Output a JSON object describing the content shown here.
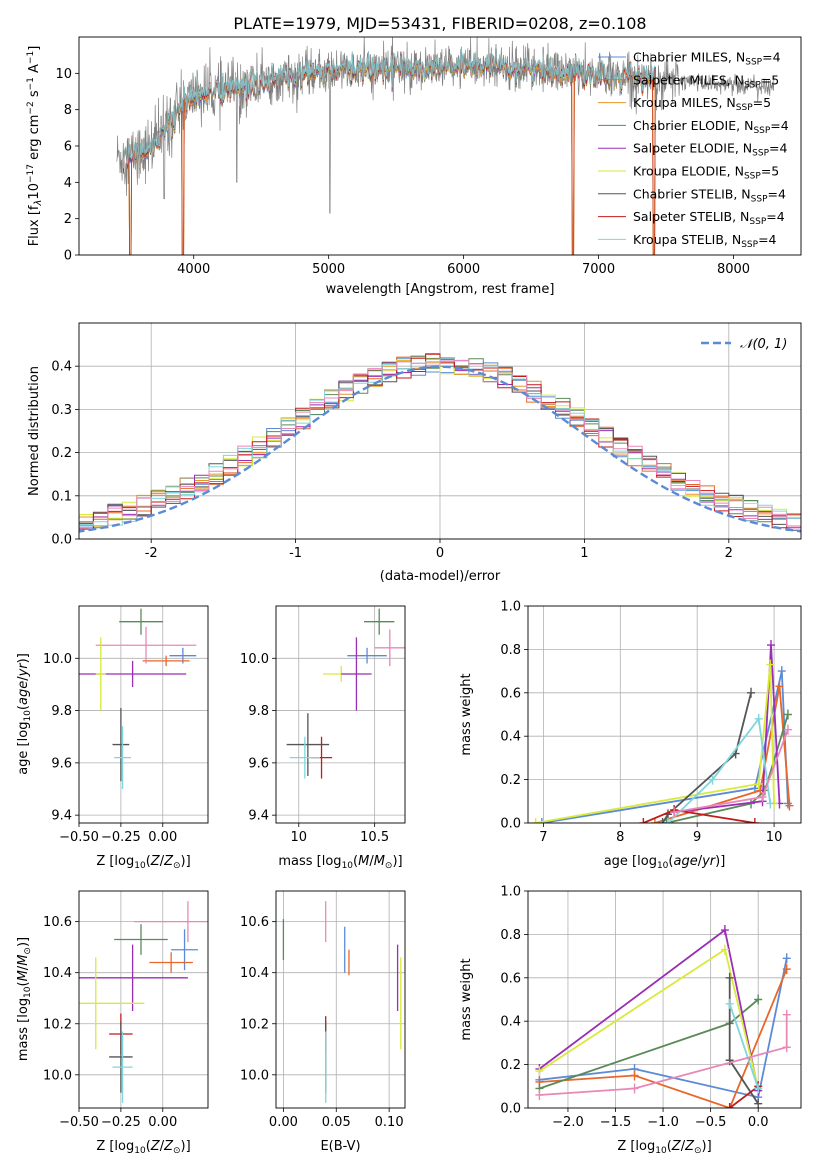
{
  "figure": {
    "title": "PLATE=1979, MJD=53431, FIBERID=0208, z=0.108",
    "colors": {
      "chabrier_miles": "#5b8bd6",
      "salpeter_miles": "#e8672a",
      "kroupa_miles": "#e8952a",
      "chabrier_elodie": "#5a8a5a",
      "salpeter_elodie": "#9a2fb5",
      "kroupa_elodie": "#d9ea3a",
      "chabrier_stelib": "#555555",
      "salpeter_stelib": "#c21b1b",
      "kroupa_stelib": "#7fd6dc",
      "pink": "#e888b8"
    }
  },
  "chart_data": [
    {
      "id": "spectrum",
      "type": "line",
      "title": "PLATE=1979, MJD=53431, FIBERID=0208, z=0.108",
      "xlabel": "wavelength [Angstrom, rest frame]",
      "ylabel": "Flux [f_λ 10^-17 erg cm^-2 s^-1 A^-1]",
      "xlim": [
        3150,
        8500
      ],
      "ylim": [
        0,
        12
      ],
      "xticks": [
        4000,
        5000,
        6000,
        7000,
        8000
      ],
      "yticks": [
        0,
        2,
        4,
        6,
        8,
        10
      ],
      "legend_position": "right",
      "legend": [
        {
          "label": "Chabrier MILES, N",
          "sub": "SSP",
          "suffix": "=4",
          "color": "#5b8bd6"
        },
        {
          "label": "Salpeter MILES, N",
          "sub": "SSP",
          "suffix": "=5",
          "color": "#e8672a"
        },
        {
          "label": "Kroupa MILES, N",
          "sub": "SSP",
          "suffix": "=5",
          "color": "#e8952a"
        },
        {
          "label": "Chabrier ELODIE, N",
          "sub": "SSP",
          "suffix": "=4",
          "color": "#5a8a5a"
        },
        {
          "label": "Salpeter ELODIE, N",
          "sub": "SSP",
          "suffix": "=4",
          "color": "#9a2fb5"
        },
        {
          "label": "Kroupa ELODIE, N",
          "sub": "SSP",
          "suffix": "=5",
          "color": "#d9ea3a"
        },
        {
          "label": "Chabrier STELIB, N",
          "sub": "SSP",
          "suffix": "=4",
          "color": "#555555"
        },
        {
          "label": "Salpeter STELIB, N",
          "sub": "SSP",
          "suffix": "=4",
          "color": "#c21b1b"
        },
        {
          "label": "Kroupa STELIB, N",
          "sub": "SSP",
          "suffix": "=4",
          "color": "#7fd6dc"
        }
      ],
      "continuum_knots": [
        [
          3430,
          5.4
        ],
        [
          3550,
          5.5
        ],
        [
          3700,
          6.0
        ],
        [
          3900,
          8.2
        ],
        [
          4000,
          8.8
        ],
        [
          4200,
          9.0
        ],
        [
          4500,
          9.5
        ],
        [
          5000,
          10.1
        ],
        [
          5500,
          10.3
        ],
        [
          6000,
          10.4
        ],
        [
          6500,
          10.2
        ],
        [
          7000,
          10.0
        ],
        [
          7500,
          9.6
        ],
        [
          8000,
          9.4
        ],
        [
          8300,
          9.2
        ]
      ],
      "observed_range": [
        3430,
        8300
      ],
      "model_range": [
        3480,
        7420
      ],
      "dips": [
        [
          3530,
          0.0
        ],
        [
          3920,
          0.0
        ],
        [
          6810,
          0.0
        ],
        [
          7410,
          0.0
        ]
      ]
    },
    {
      "id": "residuals",
      "type": "line",
      "xlabel": "(data-model)/error",
      "ylabel": "Normed distribution",
      "xlim": [
        -2.5,
        2.5
      ],
      "ylim": [
        0,
        0.5
      ],
      "xticks": [
        -2,
        -1,
        0,
        1,
        2
      ],
      "yticks": [
        0.0,
        0.1,
        0.2,
        0.3,
        0.4
      ],
      "legend_label": "𝒩(0, 1)",
      "legend_position": "top-right",
      "bin_width": 0.1
    },
    {
      "id": "age_vs_z",
      "type": "scatter",
      "xlabel": "Z [log10(Z/Z⊙)]",
      "ylabel": "age  [log10(age/yr)]",
      "xlim": [
        -0.5,
        0.27
      ],
      "ylim": [
        9.37,
        10.2
      ],
      "xticks": [
        -0.5,
        -0.25,
        0.0
      ],
      "xtick_labels": [
        "−0.50",
        "−0.25",
        "0.00"
      ],
      "yticks": [
        9.4,
        9.6,
        9.8,
        10.0
      ],
      "yticklabels": [
        "9.4",
        "9.6",
        "9.8",
        "10.0"
      ],
      "points": [
        {
          "x": -0.13,
          "y": 10.14,
          "xerr": 0.13,
          "yerr": 0.05,
          "color": "#5a8a5a"
        },
        {
          "x": 0.12,
          "y": 10.01,
          "xerr": 0.08,
          "yerr": 0.03,
          "color": "#5b8bd6"
        },
        {
          "x": 0.02,
          "y": 9.99,
          "xerr": 0.14,
          "yerr": 0.02,
          "color": "#e8672a"
        },
        {
          "x": -0.1,
          "y": 10.05,
          "xerr": 0.3,
          "yerr": 0.07,
          "color": "#e888b8"
        },
        {
          "x": -0.18,
          "y": 9.94,
          "xerr": 0.32,
          "yerr": 0.05,
          "color": "#9a2fb5"
        },
        {
          "x": -0.37,
          "y": 9.94,
          "xerr": 0.03,
          "yerr": 0.14,
          "color": "#d9ea3a"
        },
        {
          "x": -0.25,
          "y": 9.67,
          "xerr": 0.05,
          "yerr": 0.14,
          "color": "#555555"
        },
        {
          "x": -0.24,
          "y": 9.62,
          "xerr": 0.05,
          "yerr": 0.12,
          "color": "#7fd6dc"
        }
      ]
    },
    {
      "id": "age_vs_mass",
      "type": "scatter",
      "xlabel": "mass [log10(M/M⊙)]",
      "xlim": [
        9.85,
        10.7
      ],
      "ylim": [
        9.37,
        10.2
      ],
      "xticks": [
        10.0,
        10.5
      ],
      "xtick_labels": [
        "10",
        "10.5"
      ],
      "yticks": [
        9.4,
        9.6,
        9.8,
        10.0
      ],
      "yticklabels": [
        "9.4",
        "9.6",
        "9.8",
        "10.0"
      ],
      "points": [
        {
          "x": 10.53,
          "y": 10.14,
          "xerr": 0.1,
          "yerr": 0.05,
          "color": "#5a8a5a"
        },
        {
          "x": 10.45,
          "y": 10.01,
          "xerr": 0.13,
          "yerr": 0.03,
          "color": "#5b8bd6"
        },
        {
          "x": 10.6,
          "y": 10.04,
          "xerr": 0.1,
          "yerr": 0.07,
          "color": "#e888b8"
        },
        {
          "x": 10.28,
          "y": 9.94,
          "xerr": 0.12,
          "yerr": 0.03,
          "color": "#d9ea3a"
        },
        {
          "x": 10.38,
          "y": 9.94,
          "xerr": 0.1,
          "yerr": 0.14,
          "color": "#9a2fb5"
        },
        {
          "x": 10.06,
          "y": 9.67,
          "xerr": 0.14,
          "yerr": 0.12,
          "color": "#555555"
        },
        {
          "x": 10.15,
          "y": 9.62,
          "xerr": 0.07,
          "yerr": 0.08,
          "color": "#c21b1b"
        },
        {
          "x": 10.04,
          "y": 9.62,
          "xerr": 0.1,
          "yerr": 0.08,
          "color": "#7fd6dc"
        }
      ]
    },
    {
      "id": "weight_vs_age",
      "type": "line",
      "xlabel": "age  [log10(age/yr)]",
      "ylabel": "mass weight",
      "xlim": [
        6.8,
        10.35
      ],
      "ylim": [
        0,
        1
      ],
      "xticks": [
        7,
        8,
        9,
        10
      ],
      "yticks": [
        0.0,
        0.2,
        0.4,
        0.6,
        0.8,
        1.0
      ],
      "yticklabels": [
        "0.0",
        "0.2",
        "0.4",
        "0.6",
        "0.8",
        "1.0"
      ],
      "series": [
        {
          "color": "#5b8bd6",
          "points": [
            [
              6.98,
              0.0
            ],
            [
              9.75,
              0.16
            ],
            [
              10.1,
              0.7
            ],
            [
              10.18,
              0.09
            ]
          ]
        },
        {
          "color": "#e8672a",
          "points": [
            [
              8.45,
              0.0
            ],
            [
              9.82,
              0.15
            ],
            [
              10.07,
              0.63
            ],
            [
              10.2,
              0.08
            ]
          ]
        },
        {
          "color": "#5a8a5a",
          "points": [
            [
              8.6,
              0.0
            ],
            [
              9.7,
              0.09
            ],
            [
              9.88,
              0.15
            ],
            [
              10.18,
              0.5
            ]
          ]
        },
        {
          "color": "#9a2fb5",
          "points": [
            [
              8.7,
              0.05
            ],
            [
              9.85,
              0.1
            ],
            [
              9.96,
              0.82
            ],
            [
              10.07,
              0.09
            ]
          ]
        },
        {
          "color": "#d9ea3a",
          "points": [
            [
              6.9,
              0.0
            ],
            [
              9.8,
              0.18
            ],
            [
              9.95,
              0.73
            ],
            [
              10.0,
              0.09
            ]
          ]
        },
        {
          "color": "#555555",
          "points": [
            [
              8.55,
              0.0
            ],
            [
              8.62,
              0.04
            ],
            [
              9.5,
              0.32
            ],
            [
              9.7,
              0.6
            ]
          ]
        },
        {
          "color": "#c21b1b",
          "points": [
            [
              8.3,
              0.0
            ],
            [
              8.7,
              0.06
            ],
            [
              9.75,
              0.0
            ]
          ]
        },
        {
          "color": "#7fd6dc",
          "points": [
            [
              8.62,
              0.0
            ],
            [
              9.2,
              0.2
            ],
            [
              9.8,
              0.48
            ],
            [
              9.95,
              0.09
            ]
          ]
        },
        {
          "color": "#e888b8",
          "points": [
            [
              8.7,
              0.05
            ],
            [
              9.85,
              0.12
            ],
            [
              10.18,
              0.43
            ]
          ]
        }
      ]
    },
    {
      "id": "mass_vs_z",
      "type": "scatter",
      "xlabel": "Z [log10(Z/Z⊙)]",
      "ylabel": "mass [log10(M/M⊙)]",
      "xlim": [
        -0.5,
        0.27
      ],
      "ylim": [
        9.87,
        10.72
      ],
      "xticks": [
        -0.5,
        -0.25,
        0.0
      ],
      "xtick_labels": [
        "−0.50",
        "−0.25",
        "0.00"
      ],
      "yticks": [
        10.0,
        10.2,
        10.4,
        10.6
      ],
      "yticklabels": [
        "10.0",
        "10.2",
        "10.4",
        "10.6"
      ],
      "points": [
        {
          "x": 0.15,
          "y": 10.6,
          "xerr": 0.32,
          "yerr": 0.08,
          "color": "#e888b8"
        },
        {
          "x": -0.13,
          "y": 10.53,
          "xerr": 0.16,
          "yerr": 0.06,
          "color": "#5a8a5a"
        },
        {
          "x": 0.13,
          "y": 10.49,
          "xerr": 0.08,
          "yerr": 0.08,
          "color": "#5b8bd6"
        },
        {
          "x": 0.05,
          "y": 10.44,
          "xerr": 0.13,
          "yerr": 0.04,
          "color": "#e8672a"
        },
        {
          "x": -0.18,
          "y": 10.38,
          "xerr": 0.33,
          "yerr": 0.13,
          "color": "#9a2fb5"
        },
        {
          "x": -0.4,
          "y": 10.28,
          "xerr": 0.29,
          "yerr": 0.18,
          "color": "#d9ea3a"
        },
        {
          "x": -0.25,
          "y": 10.16,
          "xerr": 0.07,
          "yerr": 0.08,
          "color": "#c21b1b"
        },
        {
          "x": -0.25,
          "y": 10.07,
          "xerr": 0.07,
          "yerr": 0.14,
          "color": "#555555"
        },
        {
          "x": -0.24,
          "y": 10.03,
          "xerr": 0.06,
          "yerr": 0.14,
          "color": "#7fd6dc"
        }
      ]
    },
    {
      "id": "mass_vs_ebv",
      "type": "scatter",
      "xlabel": "E(B-V)",
      "xlim": [
        -0.007,
        0.115
      ],
      "ylim": [
        9.87,
        10.72
      ],
      "xticks": [
        0.0,
        0.05,
        0.1
      ],
      "xtick_labels": [
        "0.00",
        "0.05",
        "0.10"
      ],
      "yticks": [
        10.0,
        10.2,
        10.4,
        10.6
      ],
      "yticklabels": [
        "10.0",
        "10.2",
        "10.4",
        "10.6"
      ],
      "points": [
        {
          "x": 0.0,
          "y": 10.53,
          "xerr": 0.0,
          "yerr": 0.08,
          "color": "#5a8a5a"
        },
        {
          "x": 0.04,
          "y": 10.6,
          "xerr": 0.0,
          "yerr": 0.08,
          "color": "#e888b8"
        },
        {
          "x": 0.058,
          "y": 10.49,
          "xerr": 0.0,
          "yerr": 0.09,
          "color": "#5b8bd6"
        },
        {
          "x": 0.062,
          "y": 10.44,
          "xerr": 0.0,
          "yerr": 0.05,
          "color": "#e8672a"
        },
        {
          "x": 0.108,
          "y": 10.38,
          "xerr": 0.0,
          "yerr": 0.13,
          "color": "#9a2fb5"
        },
        {
          "x": 0.111,
          "y": 10.28,
          "xerr": 0.0,
          "yerr": 0.18,
          "color": "#d9ea3a"
        },
        {
          "x": 0.04,
          "y": 10.16,
          "xerr": 0.0,
          "yerr": 0.07,
          "color": "#c21b1b"
        },
        {
          "x": 0.04,
          "y": 10.07,
          "xerr": 0.0,
          "yerr": 0.14,
          "color": "#555555"
        },
        {
          "x": 0.04,
          "y": 10.03,
          "xerr": 0.0,
          "yerr": 0.14,
          "color": "#7fd6dc"
        }
      ]
    },
    {
      "id": "weight_vs_z",
      "type": "line",
      "xlabel": "Z [log10(Z/Z⊙)]",
      "ylabel": "mass weight",
      "xlim": [
        -2.42,
        0.45
      ],
      "ylim": [
        0,
        1
      ],
      "xticks": [
        -2.0,
        -1.5,
        -1.0,
        -0.5,
        0.0
      ],
      "xtick_labels": [
        "−2.0",
        "−1.5",
        "−1.0",
        "−0.5",
        "0.0"
      ],
      "yticks": [
        0.0,
        0.2,
        0.4,
        0.6,
        0.8,
        1.0
      ],
      "yticklabels": [
        "0.0",
        "0.2",
        "0.4",
        "0.6",
        "0.8",
        "1.0"
      ],
      "series": [
        {
          "color": "#5b8bd6",
          "points": [
            [
              -2.3,
              0.13
            ],
            [
              -1.3,
              0.18
            ],
            [
              0.0,
              0.05
            ],
            [
              0.3,
              0.69
            ]
          ]
        },
        {
          "color": "#e8672a",
          "points": [
            [
              -2.3,
              0.12
            ],
            [
              -1.3,
              0.15
            ],
            [
              -0.3,
              0.0
            ],
            [
              0.3,
              0.64
            ]
          ]
        },
        {
          "color": "#5a8a5a",
          "points": [
            [
              -2.3,
              0.09
            ],
            [
              -0.3,
              0.39
            ],
            [
              0.0,
              0.5
            ]
          ]
        },
        {
          "color": "#9a2fb5",
          "points": [
            [
              -2.3,
              0.18
            ],
            [
              -0.35,
              0.82
            ],
            [
              0.0,
              0.08
            ]
          ]
        },
        {
          "color": "#d9ea3a",
          "points": [
            [
              -2.3,
              0.17
            ],
            [
              -0.35,
              0.73
            ],
            [
              0.0,
              0.09
            ]
          ]
        },
        {
          "color": "#555555",
          "points": [
            [
              -0.3,
              0.6
            ],
            [
              -0.3,
              0.22
            ],
            [
              0.0,
              0.02
            ]
          ]
        },
        {
          "color": "#c21b1b",
          "points": [
            [
              -0.3,
              0.0
            ],
            [
              0.0,
              0.1
            ]
          ]
        },
        {
          "color": "#7fd6dc",
          "points": [
            [
              -0.3,
              0.48
            ],
            [
              0.0,
              0.09
            ]
          ]
        },
        {
          "color": "#e888b8",
          "points": [
            [
              -2.3,
              0.06
            ],
            [
              -1.3,
              0.09
            ],
            [
              0.3,
              0.28
            ],
            [
              0.3,
              0.43
            ]
          ]
        }
      ]
    }
  ]
}
